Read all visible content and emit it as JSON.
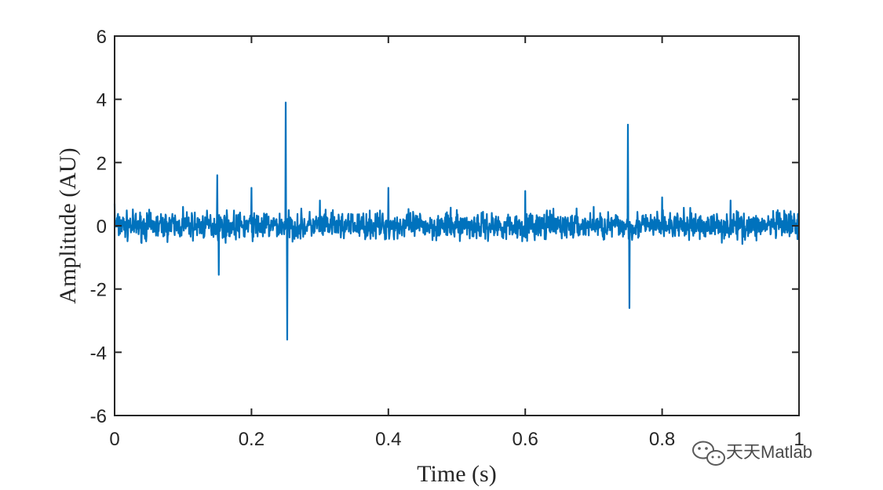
{
  "chart_data": {
    "type": "line",
    "title": "",
    "xlabel": "Time (s)",
    "ylabel": "Amplitude (AU)",
    "xlim": [
      0,
      1
    ],
    "ylim": [
      -6,
      6
    ],
    "xticks": [
      0,
      0.2,
      0.4,
      0.6,
      0.8,
      1
    ],
    "xtick_labels": [
      "0",
      "0.2",
      "0.4",
      "0.6",
      "0.8",
      "1"
    ],
    "yticks": [
      -6,
      -4,
      -2,
      0,
      2,
      4,
      6
    ],
    "ytick_labels": [
      "-6",
      "-4",
      "-2",
      "0",
      "2",
      "4",
      "6"
    ],
    "grid": false,
    "legend": "none",
    "series": [
      {
        "color": "#0072BD",
        "x": [
          0,
          0.1,
          0.15,
          0.152,
          0.2,
          0.25,
          0.252,
          0.3,
          0.4,
          0.5,
          0.6,
          0.7,
          0.75,
          0.752,
          0.8,
          0.9,
          1
        ],
        "y": [
          0.7,
          0.6,
          1.6,
          -1.55,
          1.2,
          3.9,
          -3.6,
          0.8,
          1.2,
          0.5,
          1.1,
          0.6,
          3.2,
          -2.6,
          0.9,
          0.8,
          0.5
        ],
        "noise_amplitude": 0.3
      }
    ]
  },
  "watermark": {
    "text": "天天Matlab",
    "icon": "wechat-icon"
  }
}
